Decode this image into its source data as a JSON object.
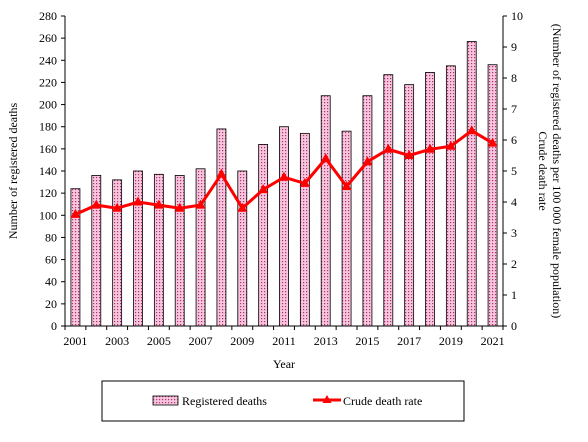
{
  "chart_data": {
    "type": "bar+line",
    "categories": [
      "2001",
      "2002",
      "2003",
      "2004",
      "2005",
      "2006",
      "2007",
      "2008",
      "2009",
      "2010",
      "2011",
      "2012",
      "2013",
      "2014",
      "2015",
      "2016",
      "2017",
      "2018",
      "2019",
      "2020",
      "2021"
    ],
    "x_tick_labels": [
      "2001",
      "2003",
      "2005",
      "2007",
      "2009",
      "2011",
      "2013",
      "2015",
      "2017",
      "2019",
      "2021"
    ],
    "xlabel": "Year",
    "ylabel_left": "Number of registered deaths",
    "ylabel_right": "Crude death rate",
    "ylabel_right_sub": "(Number of registered deaths per 100 000 female population)",
    "ylim_left": [
      0,
      280
    ],
    "yticks_left": [
      "0",
      "20",
      "40",
      "60",
      "80",
      "100",
      "120",
      "140",
      "160",
      "180",
      "200",
      "220",
      "240",
      "260",
      "280"
    ],
    "ylim_right": [
      0,
      10
    ],
    "yticks_right": [
      "0",
      "1",
      "2",
      "3",
      "4",
      "5",
      "6",
      "7",
      "8",
      "9",
      "10"
    ],
    "grid": false,
    "legend_position": "bottom",
    "series": [
      {
        "name": "Registered deaths",
        "type": "bar",
        "axis": "left",
        "color": "#f4b8d4",
        "pattern": "dotted",
        "values": [
          124,
          136,
          132,
          140,
          137,
          136,
          142,
          178,
          140,
          164,
          180,
          174,
          208,
          176,
          208,
          227,
          218,
          229,
          235,
          257,
          236
        ]
      },
      {
        "name": "Crude death rate",
        "type": "line",
        "axis": "right",
        "color": "#ff0000",
        "marker": "triangle",
        "values": [
          3.6,
          3.9,
          3.8,
          4.0,
          3.9,
          3.8,
          3.9,
          4.9,
          3.8,
          4.4,
          4.8,
          4.6,
          5.4,
          4.5,
          5.3,
          5.7,
          5.5,
          5.7,
          5.8,
          6.3,
          5.9
        ]
      }
    ]
  }
}
